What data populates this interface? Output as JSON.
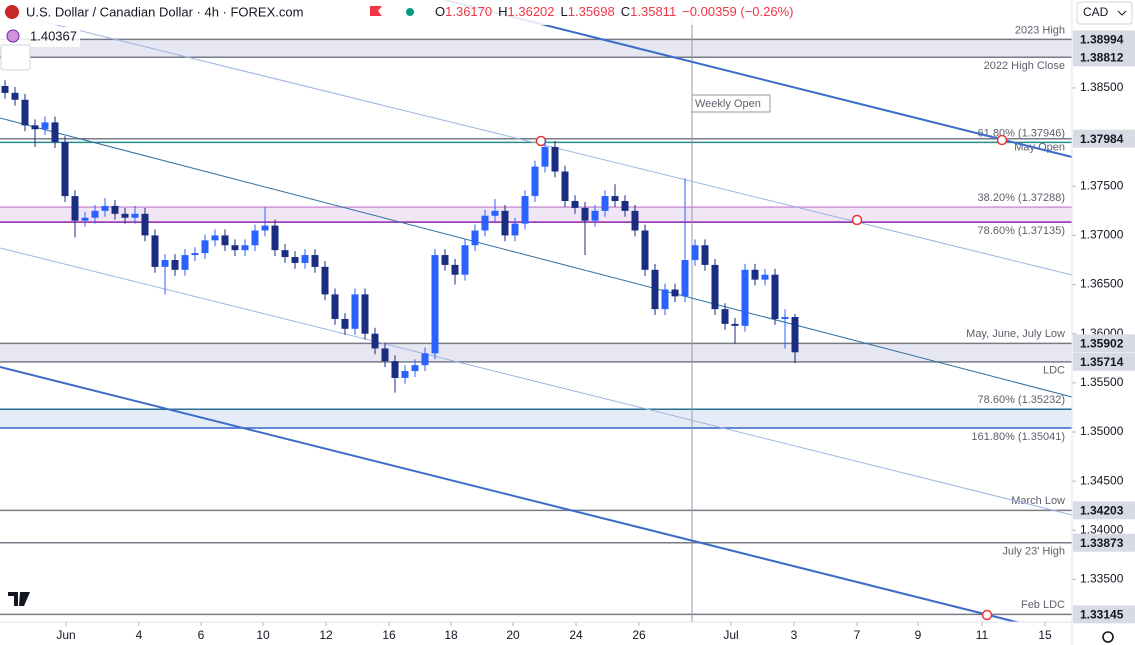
{
  "header": {
    "title": "U.S. Dollar / Canadian Dollar · 4h · FOREX.com",
    "ohlc": [
      {
        "key": "O",
        "value": "1.36170"
      },
      {
        "key": "H",
        "value": "1.36202"
      },
      {
        "key": "L",
        "value": "1.35698"
      },
      {
        "key": "C",
        "value": "1.35811"
      }
    ],
    "change": "−0.00359 (−0.26%)",
    "indicator": "1.40367",
    "currency": "CAD"
  },
  "chart_data": {
    "type": "candlestick",
    "up_color": "#2962ff",
    "down_color": "#1a2d80",
    "xlim": [
      -0.5,
      106.7
    ],
    "ylim": [
      1.33067,
      1.39395
    ],
    "grid": false,
    "xticks": [
      {
        "value": 6.1,
        "label": "Jun"
      },
      {
        "value": 13.4,
        "label": "4"
      },
      {
        "value": 19.6,
        "label": "6"
      },
      {
        "value": 25.8,
        "label": "10"
      },
      {
        "value": 32.1,
        "label": "12"
      },
      {
        "value": 38.4,
        "label": "16"
      },
      {
        "value": 44.6,
        "label": "18"
      },
      {
        "value": 50.8,
        "label": "20"
      },
      {
        "value": 57.1,
        "label": "24"
      },
      {
        "value": 63.4,
        "label": "26"
      },
      {
        "value": 72.6,
        "label": "Jul"
      },
      {
        "value": 78.9,
        "label": "3"
      },
      {
        "value": 85.2,
        "label": "7"
      },
      {
        "value": 91.3,
        "label": "9"
      },
      {
        "value": 97.7,
        "label": "11"
      },
      {
        "value": 104.0,
        "label": "15"
      }
    ],
    "yticks": [
      {
        "value": 1.385,
        "label": "1.38500"
      },
      {
        "value": 1.375,
        "label": "1.37500"
      },
      {
        "value": 1.37,
        "label": "1.37000"
      },
      {
        "value": 1.365,
        "label": "1.36500"
      },
      {
        "value": 1.36,
        "label": "1.36000"
      },
      {
        "value": 1.355,
        "label": "1.35500"
      },
      {
        "value": 1.35,
        "label": "1.35000"
      },
      {
        "value": 1.345,
        "label": "1.34500"
      },
      {
        "value": 1.34,
        "label": "1.34000"
      },
      {
        "value": 1.335,
        "label": "1.33500"
      }
    ],
    "open": [
      1.3852,
      1.3845,
      1.3838,
      1.3812,
      1.3808,
      1.3815,
      1.3795,
      1.374,
      1.3715,
      1.3718,
      1.3725,
      1.373,
      1.3722,
      1.3718,
      1.3722,
      1.37,
      1.3668,
      1.3675,
      1.3665,
      1.368,
      1.3682,
      1.3695,
      1.37,
      1.369,
      1.3685,
      1.369,
      1.3705,
      1.371,
      1.3685,
      1.3678,
      1.3672,
      1.368,
      1.3668,
      1.364,
      1.3615,
      1.3605,
      1.364,
      1.36,
      1.3585,
      1.3572,
      1.3555,
      1.3562,
      1.3568,
      1.358,
      1.368,
      1.367,
      1.366,
      1.369,
      1.3705,
      1.372,
      1.3725,
      1.37,
      1.3712,
      1.374,
      1.377,
      1.379,
      1.3765,
      1.3735,
      1.3728,
      1.3715,
      1.3725,
      1.374,
      1.3735,
      1.3725,
      1.3705,
      1.3665,
      1.3625,
      1.3645,
      1.3638,
      1.3675,
      1.369,
      1.367,
      1.3625,
      1.361,
      1.3608,
      1.3665,
      1.3655,
      1.366,
      1.3615,
      1.3617
    ],
    "high": [
      1.3858,
      1.3851,
      1.3844,
      1.3818,
      1.3821,
      1.3821,
      1.3801,
      1.3746,
      1.3724,
      1.3731,
      1.3738,
      1.3736,
      1.3728,
      1.373,
      1.3728,
      1.3706,
      1.3681,
      1.3681,
      1.3686,
      1.3688,
      1.3701,
      1.3706,
      1.3706,
      1.3696,
      1.3696,
      1.3711,
      1.3729,
      1.3716,
      1.3691,
      1.3684,
      1.3686,
      1.3686,
      1.3674,
      1.3646,
      1.3621,
      1.3646,
      1.3646,
      1.3606,
      1.3591,
      1.3578,
      1.3568,
      1.3574,
      1.3586,
      1.3686,
      1.3686,
      1.3676,
      1.3696,
      1.3711,
      1.3726,
      1.3737,
      1.3731,
      1.3718,
      1.3746,
      1.3776,
      1.3797,
      1.3796,
      1.3771,
      1.3741,
      1.3734,
      1.3731,
      1.3746,
      1.3752,
      1.3741,
      1.3731,
      1.3711,
      1.3671,
      1.3651,
      1.3651,
      1.3758,
      1.3696,
      1.3696,
      1.3676,
      1.3631,
      1.3616,
      1.3671,
      1.3671,
      1.3666,
      1.3666,
      1.3625,
      1.36202
    ],
    "low": [
      1.3839,
      1.3832,
      1.3806,
      1.379,
      1.3802,
      1.3789,
      1.3734,
      1.3698,
      1.3709,
      1.3712,
      1.3719,
      1.3716,
      1.3712,
      1.3712,
      1.3694,
      1.3662,
      1.364,
      1.3659,
      1.3659,
      1.3674,
      1.3676,
      1.3689,
      1.3684,
      1.3679,
      1.3679,
      1.3684,
      1.3699,
      1.3679,
      1.3672,
      1.3666,
      1.3666,
      1.3662,
      1.3634,
      1.3609,
      1.3599,
      1.3599,
      1.3594,
      1.3579,
      1.3566,
      1.354,
      1.3549,
      1.3556,
      1.3562,
      1.3574,
      1.3664,
      1.365,
      1.3654,
      1.3684,
      1.3699,
      1.3714,
      1.3694,
      1.3694,
      1.3706,
      1.3734,
      1.3764,
      1.3759,
      1.3729,
      1.3722,
      1.368,
      1.3709,
      1.3719,
      1.3729,
      1.3719,
      1.3699,
      1.3659,
      1.3619,
      1.3619,
      1.3632,
      1.3632,
      1.3669,
      1.3664,
      1.3619,
      1.3604,
      1.359,
      1.3602,
      1.3649,
      1.3649,
      1.3609,
      1.3585,
      1.35698
    ],
    "close": [
      1.3845,
      1.3838,
      1.3812,
      1.3808,
      1.3815,
      1.3795,
      1.374,
      1.3715,
      1.3718,
      1.3725,
      1.373,
      1.3722,
      1.3718,
      1.3722,
      1.37,
      1.3668,
      1.3675,
      1.3665,
      1.368,
      1.3682,
      1.3695,
      1.37,
      1.369,
      1.3685,
      1.369,
      1.3705,
      1.371,
      1.3685,
      1.3678,
      1.3672,
      1.368,
      1.3668,
      1.364,
      1.3615,
      1.3605,
      1.364,
      1.36,
      1.3585,
      1.3572,
      1.3555,
      1.3562,
      1.3568,
      1.358,
      1.368,
      1.367,
      1.366,
      1.369,
      1.3705,
      1.372,
      1.3725,
      1.37,
      1.3712,
      1.374,
      1.377,
      1.379,
      1.3765,
      1.3735,
      1.3728,
      1.3715,
      1.3725,
      1.374,
      1.3735,
      1.3725,
      1.3705,
      1.3665,
      1.3625,
      1.3645,
      1.3638,
      1.3675,
      1.369,
      1.367,
      1.3625,
      1.361,
      1.3608,
      1.3665,
      1.3655,
      1.366,
      1.3615,
      1.3617,
      1.35811
    ],
    "zones": [
      {
        "color": "#e6e7f2",
        "levels": [
          {
            "value": 1.38994,
            "text": "2023 High",
            "color": "#787b86",
            "boxed": true,
            "text_pos": "above"
          },
          {
            "value": 1.38812,
            "text": "2022 High Close",
            "color": "#787b86",
            "boxed": true,
            "text_pos": "below"
          }
        ]
      },
      {
        "color": "#f1e6f5",
        "levels": [
          {
            "value": 1.37288,
            "text": "38.20% (1.37288)",
            "color": "#ce93d8",
            "boxed": false,
            "text_pos": "above"
          },
          {
            "value": 1.37135,
            "text": "78.60% (1.37135)",
            "color": "#8e24aa",
            "boxed": false,
            "text_pos": "below"
          }
        ]
      },
      {
        "color": "#e6e7f2",
        "levels": [
          {
            "value": 1.35902,
            "text": "May, June, July Low",
            "color": "#787b86",
            "boxed": true,
            "text_pos": "above"
          },
          {
            "value": 1.35714,
            "text": "LDC",
            "color": "#787b86",
            "boxed": true,
            "text_pos": "below"
          }
        ]
      },
      {
        "color": "#e6ecf7",
        "levels": [
          {
            "value": 1.35232,
            "text": "78.60% (1.35232)",
            "color": "#2a6f8f",
            "boxed": false,
            "text_pos": "above"
          },
          {
            "value": 1.35041,
            "text": "161.80% (1.35041)",
            "color": "#3465c9",
            "boxed": false,
            "text_pos": "below"
          }
        ]
      },
      {
        "color": null,
        "levels": [
          {
            "value": 1.37984,
            "text": "May Open",
            "color": "#787b86",
            "boxed": true,
            "text_pos": "below"
          },
          {
            "value": 1.37946,
            "text": "61.80% (1.37946)",
            "color": "#2a8c8c",
            "boxed": false,
            "text_pos": "above"
          },
          {
            "value": 1.34203,
            "text": "March Low",
            "color": "#787b86",
            "boxed": true,
            "text_pos": "above"
          },
          {
            "value": 1.33873,
            "text": "July 23' High",
            "color": "#787b86",
            "boxed": true,
            "text_pos": "below"
          },
          {
            "value": 1.33145,
            "text": "Feb LDC",
            "color": "#787b86",
            "boxed": true,
            "text_pos": "above"
          }
        ]
      }
    ],
    "vlines": [
      {
        "x": 68.7,
        "text": "Weekly Open",
        "color": "#9598a1"
      }
    ]
  }
}
